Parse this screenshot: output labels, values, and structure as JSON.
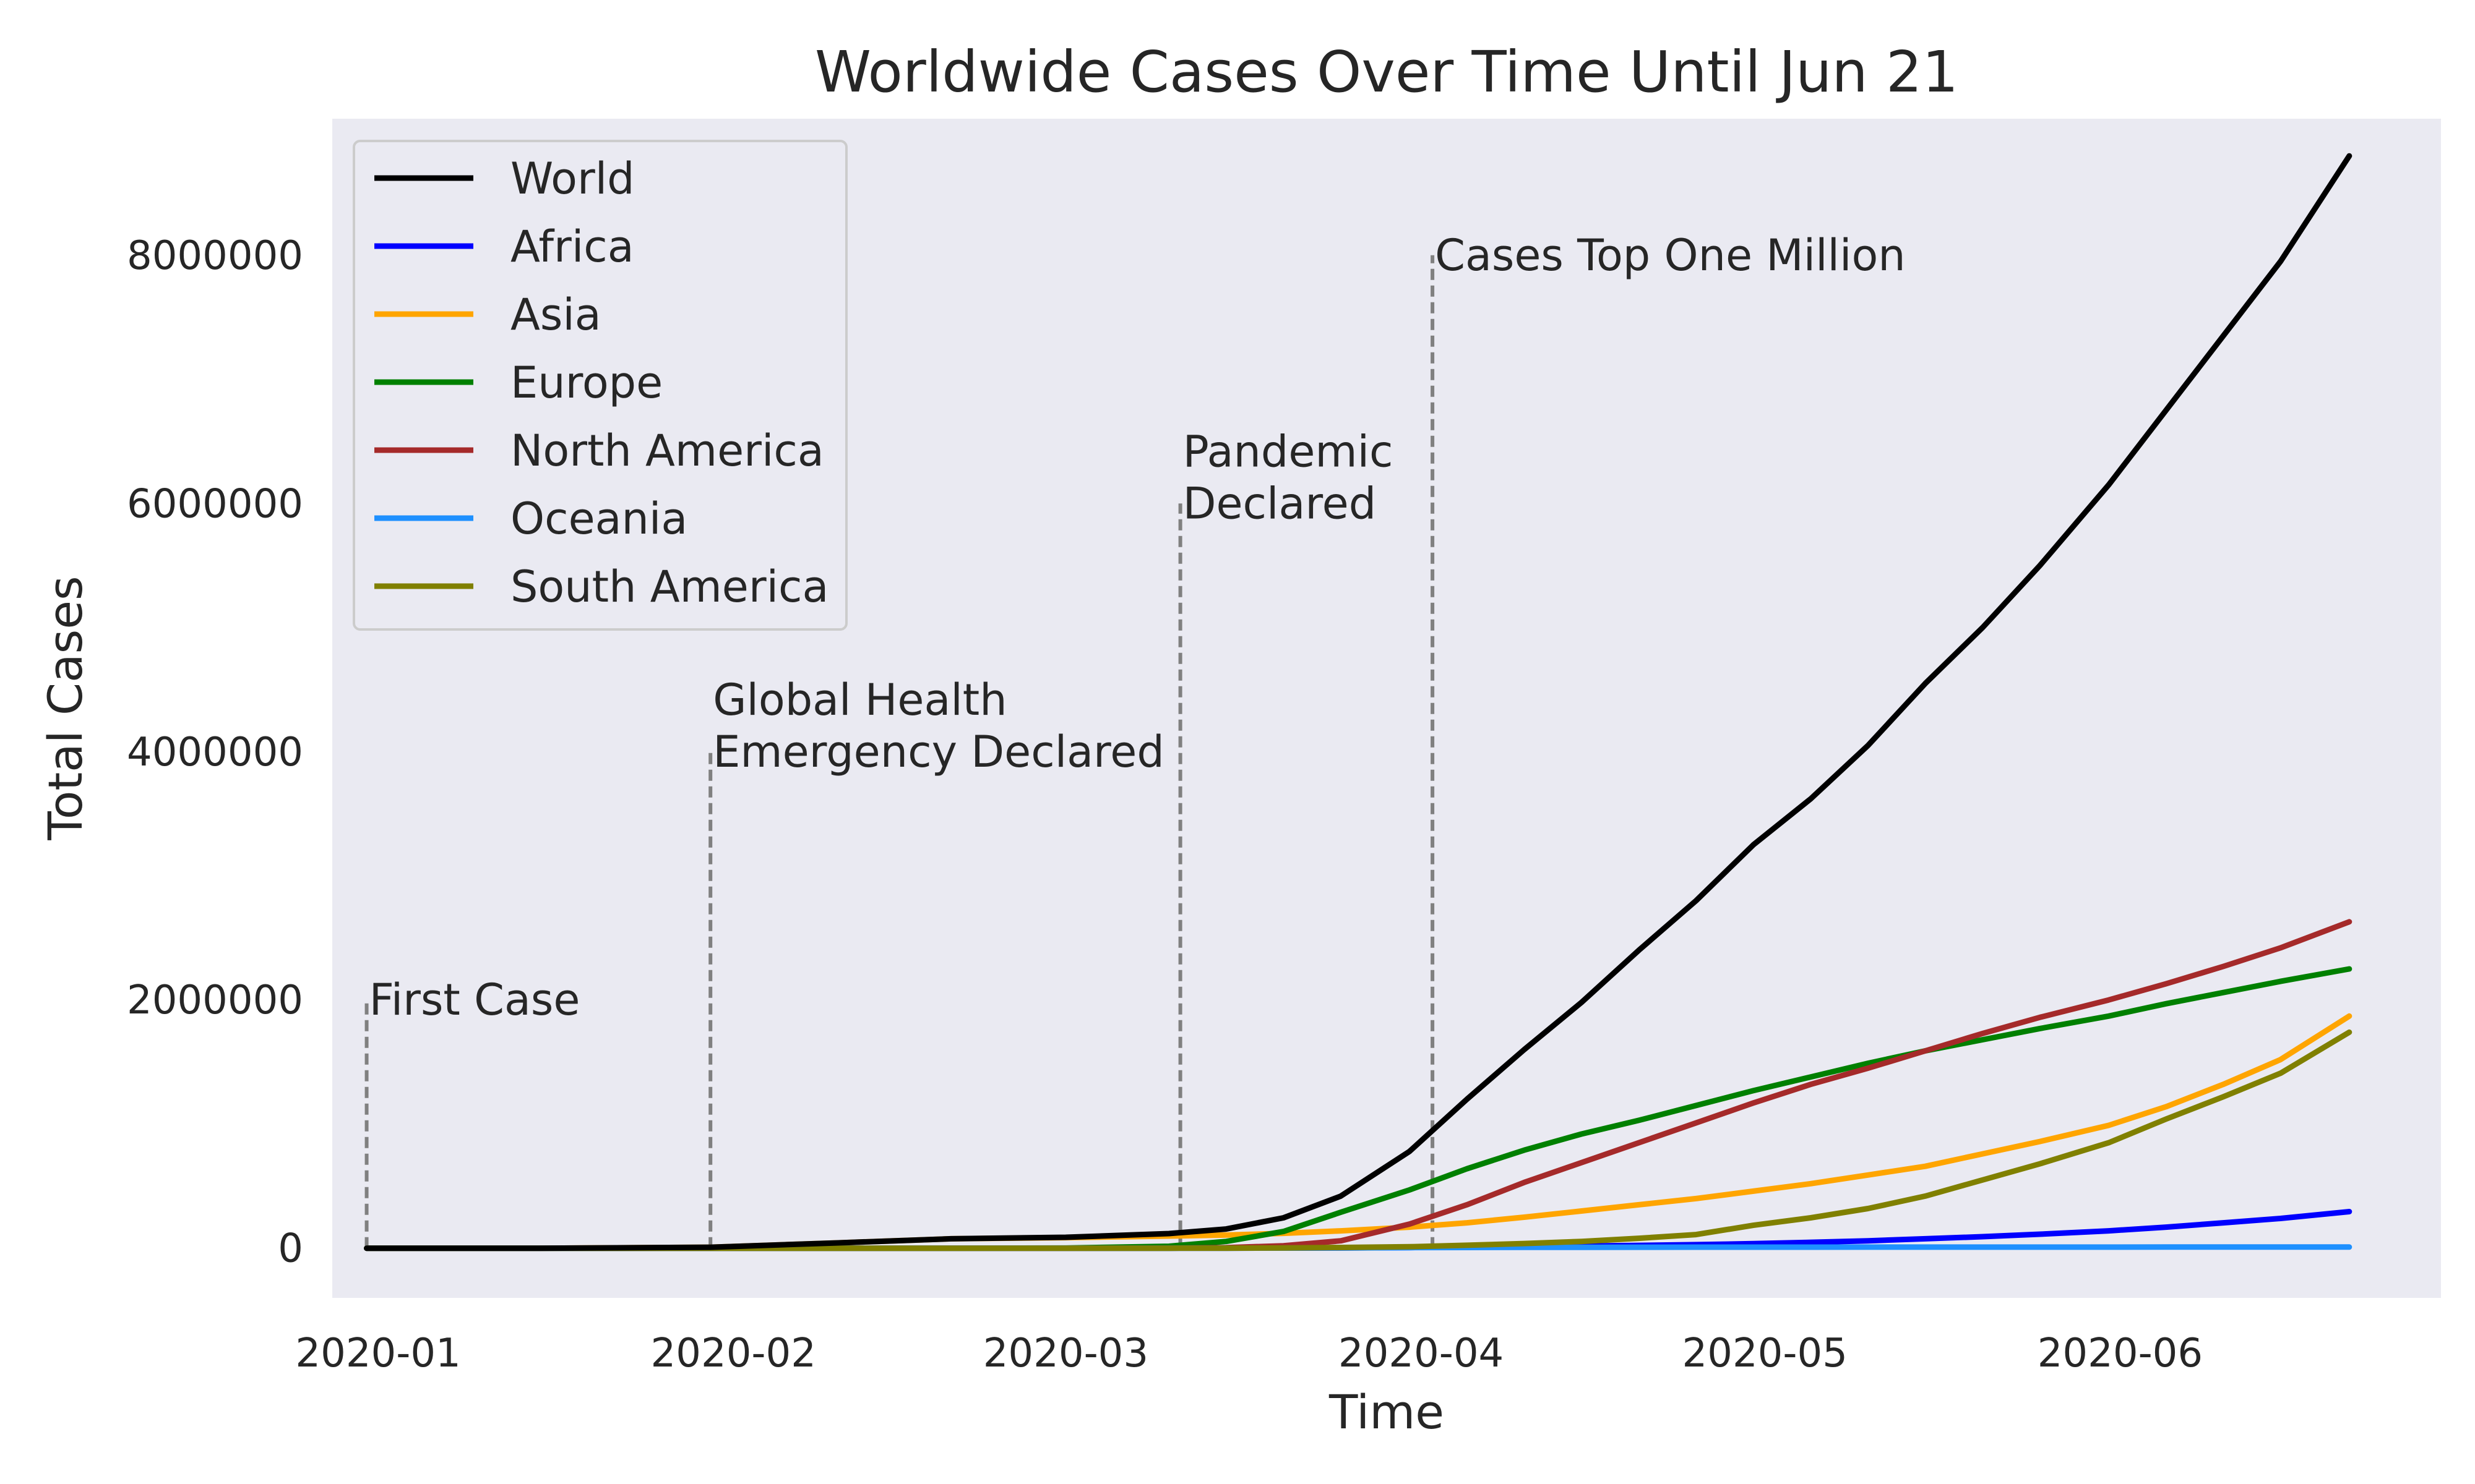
{
  "chart_data": {
    "type": "line",
    "title": "Worldwide Cases Over Time Until Jun 21",
    "xlabel": "Time",
    "ylabel": "Total Cases",
    "xlim": [
      "2019-12-28",
      "2020-06-29"
    ],
    "ylim": [
      -400000,
      9100000
    ],
    "grid": false,
    "legend_position": "top-left",
    "x_ticks": [
      "2020-01-01",
      "2020-02-01",
      "2020-03-01",
      "2020-04-01",
      "2020-05-01",
      "2020-06-01"
    ],
    "x_tick_labels": [
      "2020-01",
      "2020-02",
      "2020-03",
      "2020-04",
      "2020-05",
      "2020-06"
    ],
    "y_ticks": [
      0,
      2000000,
      4000000,
      6000000,
      8000000
    ],
    "y_tick_labels": [
      "0",
      "2000000",
      "4000000",
      "6000000",
      "8000000"
    ],
    "annotations": [
      {
        "date": "2019-12-31",
        "y": 2000000,
        "lines": [
          "First Case"
        ]
      },
      {
        "date": "2020-01-30",
        "y": 4000000,
        "lines": [
          "Global Health",
          "Emergency Declared"
        ]
      },
      {
        "date": "2020-03-11",
        "y": 6000000,
        "lines": [
          "Pandemic",
          "Declared"
        ]
      },
      {
        "date": "2020-04-02",
        "y": 8000000,
        "lines": [
          "Cases Top One Million"
        ]
      }
    ],
    "dates": [
      "2019-12-31",
      "2020-01-15",
      "2020-01-30",
      "2020-02-10",
      "2020-02-20",
      "2020-03-01",
      "2020-03-10",
      "2020-03-15",
      "2020-03-20",
      "2020-03-25",
      "2020-03-31",
      "2020-04-05",
      "2020-04-10",
      "2020-04-15",
      "2020-04-20",
      "2020-04-25",
      "2020-04-30",
      "2020-05-05",
      "2020-05-10",
      "2020-05-15",
      "2020-05-20",
      "2020-05-25",
      "2020-05-31",
      "2020-06-05",
      "2020-06-10",
      "2020-06-15",
      "2020-06-21"
    ],
    "series": [
      {
        "name": "World",
        "color": "#000000",
        "values": [
          0,
          0,
          8000,
          43000,
          76000,
          88000,
          118000,
          155000,
          245000,
          420000,
          780000,
          1200000,
          1600000,
          1980000,
          2400000,
          2800000,
          3250000,
          3620000,
          4050000,
          4550000,
          5000000,
          5500000,
          6150000,
          6750000,
          7350000,
          7950000,
          8800000
        ]
      },
      {
        "name": "Africa",
        "color": "#0000ff",
        "values": [
          0,
          0,
          0,
          0,
          0,
          0,
          100,
          300,
          1000,
          2500,
          5500,
          9000,
          13000,
          18000,
          23000,
          29000,
          37000,
          48000,
          60000,
          76000,
          93000,
          113000,
          140000,
          170000,
          205000,
          240000,
          295000
        ]
      },
      {
        "name": "Asia",
        "color": "#ffa500",
        "values": [
          0,
          0,
          8000,
          43000,
          76000,
          85000,
          98000,
          106000,
          120000,
          140000,
          170000,
          205000,
          250000,
          300000,
          350000,
          400000,
          460000,
          520000,
          590000,
          660000,
          760000,
          860000,
          990000,
          1140000,
          1320000,
          1520000,
          1870000
        ]
      },
      {
        "name": "Europe",
        "color": "#008000",
        "values": [
          0,
          0,
          0,
          0,
          0,
          1500,
          16000,
          55000,
          135000,
          290000,
          470000,
          640000,
          790000,
          920000,
          1030000,
          1150000,
          1270000,
          1380000,
          1490000,
          1590000,
          1680000,
          1770000,
          1870000,
          1970000,
          2060000,
          2150000,
          2250000
        ]
      },
      {
        "name": "North America",
        "color": "#a52a2a",
        "values": [
          0,
          0,
          0,
          0,
          0,
          0,
          1000,
          5000,
          20000,
          60000,
          195000,
          350000,
          530000,
          690000,
          850000,
          1010000,
          1170000,
          1320000,
          1450000,
          1590000,
          1730000,
          1860000,
          2000000,
          2130000,
          2270000,
          2420000,
          2630000
        ]
      },
      {
        "name": "Oceania",
        "color": "#1e90ff",
        "values": [
          0,
          0,
          0,
          0,
          0,
          0,
          100,
          300,
          1000,
          2500,
          5000,
          6000,
          7000,
          7500,
          8000,
          8300,
          8500,
          8700,
          8800,
          8900,
          9000,
          9100,
          9200,
          9300,
          9400,
          9500,
          9600
        ]
      },
      {
        "name": "South America",
        "color": "#808000",
        "values": [
          0,
          0,
          0,
          0,
          0,
          0,
          100,
          500,
          2000,
          6000,
          12000,
          24000,
          38000,
          55000,
          80000,
          110000,
          185000,
          245000,
          320000,
          420000,
          550000,
          680000,
          850000,
          1040000,
          1220000,
          1410000,
          1740000
        ]
      }
    ]
  }
}
